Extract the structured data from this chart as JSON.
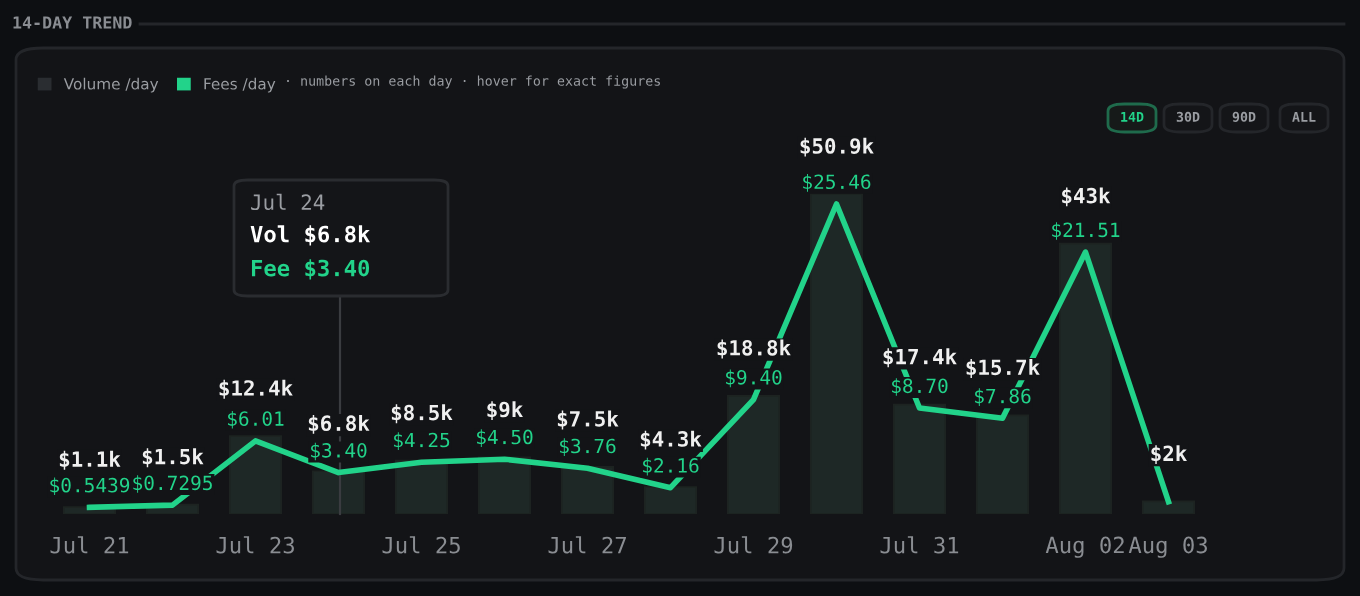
{
  "chart_data": {
    "type": "bar",
    "title": "14-DAY TREND",
    "categories": [
      "Jul 21",
      null,
      "Jul 23",
      null,
      "Jul 25",
      null,
      "Jul 27",
      null,
      "Jul 29",
      null,
      "Jul 31",
      null,
      "Aug 02",
      "Aug 03"
    ],
    "series": [
      {
        "name": "Volume /day",
        "color": "#1e2826",
        "values": [
          1.1,
          1.5,
          12.4,
          6.8,
          8.5,
          9,
          7.5,
          4.3,
          18.8,
          50.9,
          17.4,
          15.7,
          43,
          2
        ],
        "value_labels": [
          "$1.1k",
          "$1.5k",
          "$12.4k",
          "$6.8k",
          "$8.5k",
          "$9k",
          "$7.5k",
          "$4.3k",
          "$18.8k",
          "$50.9k",
          "$17.4k",
          "$15.7k",
          "$43k",
          "$2k"
        ]
      },
      {
        "name": "Fees /day",
        "type": "line",
        "axis": "y2",
        "color": "#22d38a",
        "values": [
          0.5439,
          0.7295,
          6.01,
          3.4,
          4.25,
          4.5,
          3.76,
          2.16,
          9.4,
          25.46,
          8.7,
          7.86,
          21.51,
          1.0
        ],
        "value_labels": [
          "$0.5439",
          "$0.7295",
          "$6.01",
          "$3.40",
          "$4.25",
          "$4.50",
          "$3.76",
          "$2.16",
          "$9.40",
          "$25.46",
          "$8.70",
          "$7.86",
          "$21.51",
          null
        ]
      }
    ],
    "legend": "top left",
    "grid": false,
    "tick_labels": "x",
    "marker": "none",
    "line_style": "solid",
    "annotations": [
      "Jul 24",
      "Vol $6.8k",
      "Fee $3.40",
      "· numbers on each day · hover for exact figures",
      "14D",
      "30D",
      "90D",
      "ALL"
    ]
  }
}
